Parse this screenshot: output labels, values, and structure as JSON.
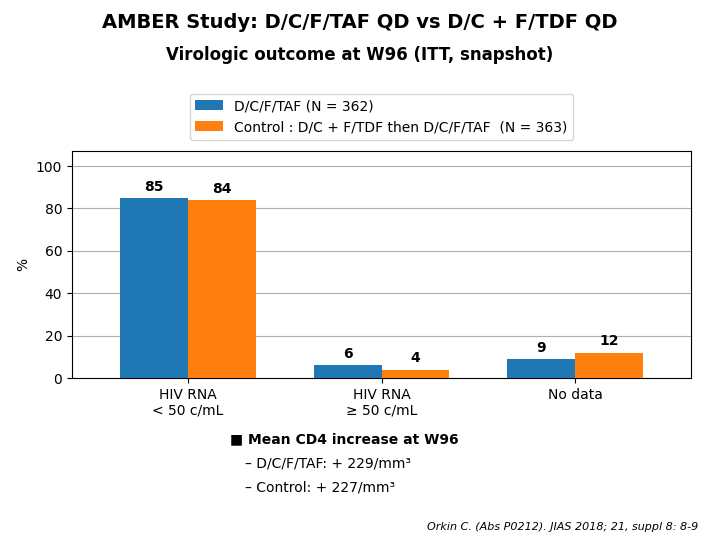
{
  "chart_data": {
    "type": "bar",
    "title": "AMBER Study: D/C/F/TAF QD vs D/C + F/TDF QD",
    "subtitle": "Virologic outcome at W96 (ITT, snapshot)",
    "ylabel": "%",
    "categories": [
      "HIV RNA\n< 50 c/mL",
      "HIV RNA\n≥ 50 c/mL",
      "No data"
    ],
    "series": [
      {
        "name": "D/C/F/TAF (N = 362)",
        "values": [
          85,
          6,
          9
        ]
      },
      {
        "name": "Control : D/C + F/TDF then D/C/F/TAF  (N = 363)",
        "values": [
          84,
          4,
          12
        ]
      }
    ],
    "ylim": [
      0,
      107
    ],
    "yticks": [
      0,
      20,
      40,
      60,
      80,
      100
    ],
    "grid": true,
    "legend": "lower center",
    "data_labels": true,
    "annotations": [
      "■ Mean CD4 increase at W96",
      "– D/C/F/TAF: + 229/mm³",
      "– Control: + 227/mm³",
      "Orkin C. (Abs P0212). JIAS 2018; 21, suppl 8: 8-9"
    ]
  }
}
